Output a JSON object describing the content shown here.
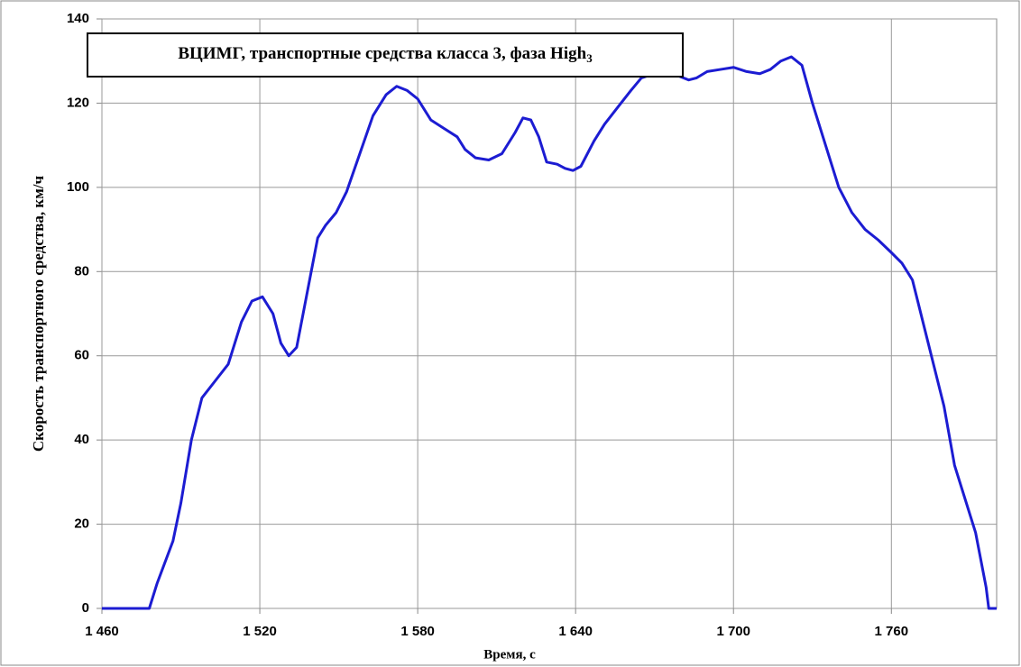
{
  "chart_data": {
    "type": "line",
    "title": "ВЦИМГ, транспортные средства класса 3, фаза High",
    "title_subscript": "3",
    "xlabel": "Время, с",
    "ylabel": "Скорость транспортного средства, км/ч",
    "xlim": [
      1460,
      1800
    ],
    "ylim": [
      0,
      140
    ],
    "xticks": [
      {
        "value": 1460,
        "label": "1 460"
      },
      {
        "value": 1520,
        "label": "1 520"
      },
      {
        "value": 1580,
        "label": "1 580"
      },
      {
        "value": 1640,
        "label": "1 640"
      },
      {
        "value": 1700,
        "label": "1 700"
      },
      {
        "value": 1760,
        "label": "1 760"
      }
    ],
    "yticks": [
      0,
      20,
      40,
      60,
      80,
      100,
      120,
      140
    ],
    "grid": true,
    "x": [
      1460,
      1478,
      1481,
      1487,
      1490,
      1494,
      1498,
      1503,
      1508,
      1513,
      1517,
      1521,
      1525,
      1528,
      1531,
      1534,
      1538,
      1542,
      1545,
      1549,
      1553,
      1558,
      1563,
      1568,
      1572,
      1576,
      1580,
      1585,
      1590,
      1595,
      1598,
      1602,
      1607,
      1612,
      1617,
      1620,
      1623,
      1626,
      1629,
      1633,
      1636,
      1639,
      1642,
      1647,
      1651,
      1656,
      1661,
      1665,
      1670,
      1675,
      1679,
      1683,
      1686,
      1690,
      1695,
      1700,
      1705,
      1710,
      1714,
      1718,
      1722,
      1726,
      1730,
      1735,
      1740,
      1745,
      1750,
      1755,
      1760,
      1764,
      1768,
      1772,
      1776,
      1780,
      1784,
      1788,
      1792,
      1796,
      1797,
      1800
    ],
    "series": [
      {
        "name": "Скорость",
        "color": "#1c1cd2",
        "values": [
          0,
          0,
          6,
          16,
          25,
          40,
          50,
          54,
          58,
          68,
          73,
          74,
          70,
          63,
          60,
          62,
          75,
          88,
          91,
          94,
          99,
          108,
          117,
          122,
          124,
          123,
          121,
          116,
          114,
          112,
          109,
          107,
          106.5,
          108,
          113,
          116.5,
          116,
          112,
          106,
          105.5,
          104.5,
          104,
          105,
          111,
          115,
          119,
          123,
          126,
          127,
          127.5,
          126.5,
          125.5,
          126,
          127.5,
          128,
          128.5,
          127.5,
          127,
          128,
          130,
          131,
          129,
          120,
          110,
          100,
          94,
          90,
          87.5,
          84.5,
          82,
          78,
          68,
          58,
          48,
          34,
          26,
          18,
          5,
          0,
          0
        ]
      }
    ]
  }
}
